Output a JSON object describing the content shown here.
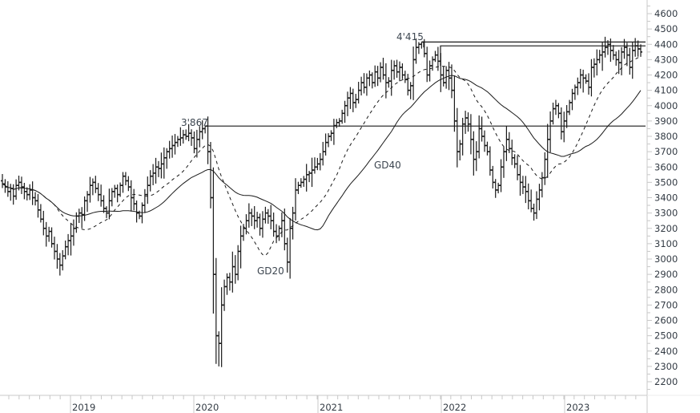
{
  "chart_data": {
    "type": "ohlc",
    "title": "",
    "xlabel": "",
    "ylabel": "",
    "frequency": "weekly",
    "ylim": [
      2150,
      4700
    ],
    "y_ticks": [
      2200,
      2300,
      2400,
      2500,
      2600,
      2700,
      2800,
      2900,
      3000,
      3100,
      3200,
      3300,
      3400,
      3500,
      3600,
      3700,
      3800,
      3900,
      4000,
      4100,
      4200,
      4300,
      4400,
      4500,
      4600
    ],
    "x_tick_labels": [
      "2019",
      "2020",
      "2021",
      "2022",
      "2023"
    ],
    "grid": false,
    "legend": "none (inline labels)",
    "annotations": [
      {
        "text": "3'867",
        "type": "peak-label",
        "value": 3867
      },
      {
        "text": "4'415",
        "type": "peak-label",
        "value": 4415
      },
      {
        "text": "GD20",
        "type": "series-label",
        "series": "GD20"
      },
      {
        "text": "GD40",
        "type": "series-label",
        "series": "GD40"
      }
    ],
    "horizontal_lines": [
      {
        "value": 3867,
        "from": "2020-02",
        "to": "end"
      },
      {
        "value": 4415,
        "from": "2021-11",
        "to": "end"
      },
      {
        "value": 4390,
        "from": "2022-01",
        "to": "end"
      }
    ],
    "series": [
      {
        "name": "Price",
        "style": "ohlc-bars"
      },
      {
        "name": "GD20",
        "style": "dashed",
        "period_weeks": 20
      },
      {
        "name": "GD40",
        "style": "solid",
        "period_weeks": 40
      }
    ],
    "closes_weekly": [
      3490,
      3470,
      3440,
      3460,
      3410,
      3480,
      3500,
      3470,
      3440,
      3420,
      3450,
      3400,
      3380,
      3320,
      3260,
      3200,
      3150,
      3180,
      3100,
      3050,
      3000,
      2960,
      3020,
      3080,
      3120,
      3150,
      3200,
      3280,
      3300,
      3290,
      3380,
      3420,
      3480,
      3500,
      3460,
      3420,
      3380,
      3330,
      3300,
      3380,
      3440,
      3460,
      3420,
      3480,
      3540,
      3510,
      3470,
      3400,
      3360,
      3300,
      3280,
      3350,
      3420,
      3480,
      3540,
      3560,
      3600,
      3590,
      3620,
      3660,
      3700,
      3720,
      3740,
      3760,
      3780,
      3790,
      3810,
      3800,
      3820,
      3790,
      3720,
      3780,
      3830,
      3850,
      3867,
      3700,
      3400,
      2900,
      2500,
      2450,
      2700,
      2820,
      2880,
      2850,
      2950,
      2900,
      3050,
      3150,
      3200,
      3250,
      3300,
      3280,
      3250,
      3270,
      3200,
      3260,
      3300,
      3280,
      3250,
      3180,
      3150,
      3200,
      3250,
      3100,
      2980,
      3200,
      3300,
      3450,
      3480,
      3500,
      3520,
      3550,
      3560,
      3580,
      3600,
      3620,
      3650,
      3700,
      3760,
      3800,
      3820,
      3870,
      3890,
      3900,
      3950,
      4000,
      4050,
      4080,
      4020,
      4040,
      4100,
      4150,
      4120,
      4180,
      4200,
      4150,
      4220,
      4180,
      4250,
      4200,
      4150,
      4160,
      4230,
      4260,
      4220,
      4250,
      4200,
      4170,
      4100,
      4130,
      4300,
      4380,
      4400,
      4415,
      4340,
      4200,
      4260,
      4300,
      4330,
      4290,
      4200,
      4150,
      4230,
      4180,
      4100,
      3900,
      3700,
      3750,
      3880,
      3920,
      3880,
      3780,
      3650,
      3700,
      3850,
      3800,
      3740,
      3700,
      3580,
      3500,
      3450,
      3480,
      3600,
      3700,
      3780,
      3720,
      3660,
      3620,
      3550,
      3500,
      3470,
      3440,
      3380,
      3330,
      3300,
      3390,
      3450,
      3530,
      3650,
      3780,
      3900,
      3980,
      4000,
      3950,
      3830,
      3900,
      3960,
      4020,
      4080,
      4120,
      4150,
      4200,
      4180,
      4160,
      4120,
      4250,
      4270,
      4300,
      4330,
      4350,
      4380,
      4400,
      4360,
      4330,
      4300,
      4280,
      4350,
      4380,
      4330,
      4250,
      4360,
      4390,
      4370,
      4350
    ],
    "price_range_shown": {
      "min": 2300,
      "max": 4415
    }
  },
  "axis": {
    "y_labels": [
      "4600",
      "4500",
      "4400",
      "4300",
      "4200",
      "4100",
      "4000",
      "3900",
      "3800",
      "3700",
      "3600",
      "3500",
      "3400",
      "3300",
      "3200",
      "3100",
      "3000",
      "2900",
      "2800",
      "2700",
      "2600",
      "2500",
      "2400",
      "2300",
      "2200"
    ],
    "x_labels": [
      "2019",
      "2020",
      "2021",
      "2022",
      "2023"
    ]
  },
  "labels": {
    "peak_2020": "3'867",
    "peak_2021": "4'415",
    "gd20": "GD20",
    "gd40": "GD40"
  },
  "colors": {
    "price": "#1a1a1a",
    "ma": "#1a1a1a",
    "hline": "#1a1a1a",
    "axis": "#c8c8c8",
    "text": "#333b44"
  }
}
